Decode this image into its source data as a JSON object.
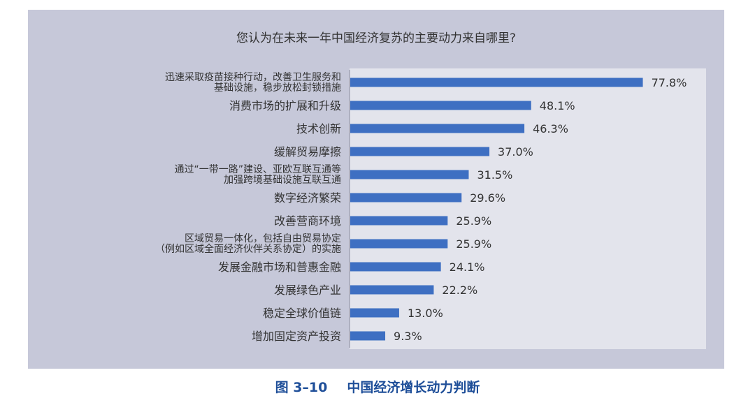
{
  "chart_data": {
    "type": "bar",
    "orientation": "horizontal",
    "title": "您认为在未来一年中国经济复苏的主要动力来自哪里?",
    "categories": [
      [
        "迅速采取疫苗接种行动，改善卫生服务和",
        "基础设施，稳步放松封锁措施"
      ],
      [
        "消费市场的扩展和升级"
      ],
      [
        "技术创新"
      ],
      [
        "缓解贸易摩擦"
      ],
      [
        "通过“一带一路”建设、亚欧互联互通等",
        "加强跨境基础设施互联互通"
      ],
      [
        "数字经济繁荣"
      ],
      [
        "改善营商环境"
      ],
      [
        "区域贸易一体化，包括自由贸易协定",
        "（例如区域全面经济伙伴关系协定）的实施"
      ],
      [
        "发展金融市场和普惠金融"
      ],
      [
        "发展绿色产业"
      ],
      [
        "稳定全球价值链"
      ],
      [
        "增加固定资产投资"
      ]
    ],
    "values": [
      77.8,
      48.1,
      46.3,
      37.0,
      31.5,
      29.6,
      25.9,
      25.9,
      24.1,
      22.2,
      13.0,
      9.3
    ],
    "value_labels": [
      "77.8%",
      "48.1%",
      "46.3%",
      "37.0%",
      "31.5%",
      "29.6%",
      "25.9%",
      "25.9%",
      "24.1%",
      "22.2%",
      "13.0%",
      "9.3%"
    ],
    "xlim": [
      0,
      100
    ],
    "grid": false,
    "colors": {
      "bar": "#3e6fc2",
      "panel": "#c6c8d9",
      "plot": "#e3e4ec",
      "text": "#333333",
      "caption": "#1f4f99"
    }
  },
  "caption": {
    "figure_number": "图 3–10",
    "text": "中国经济增长动力判断"
  }
}
